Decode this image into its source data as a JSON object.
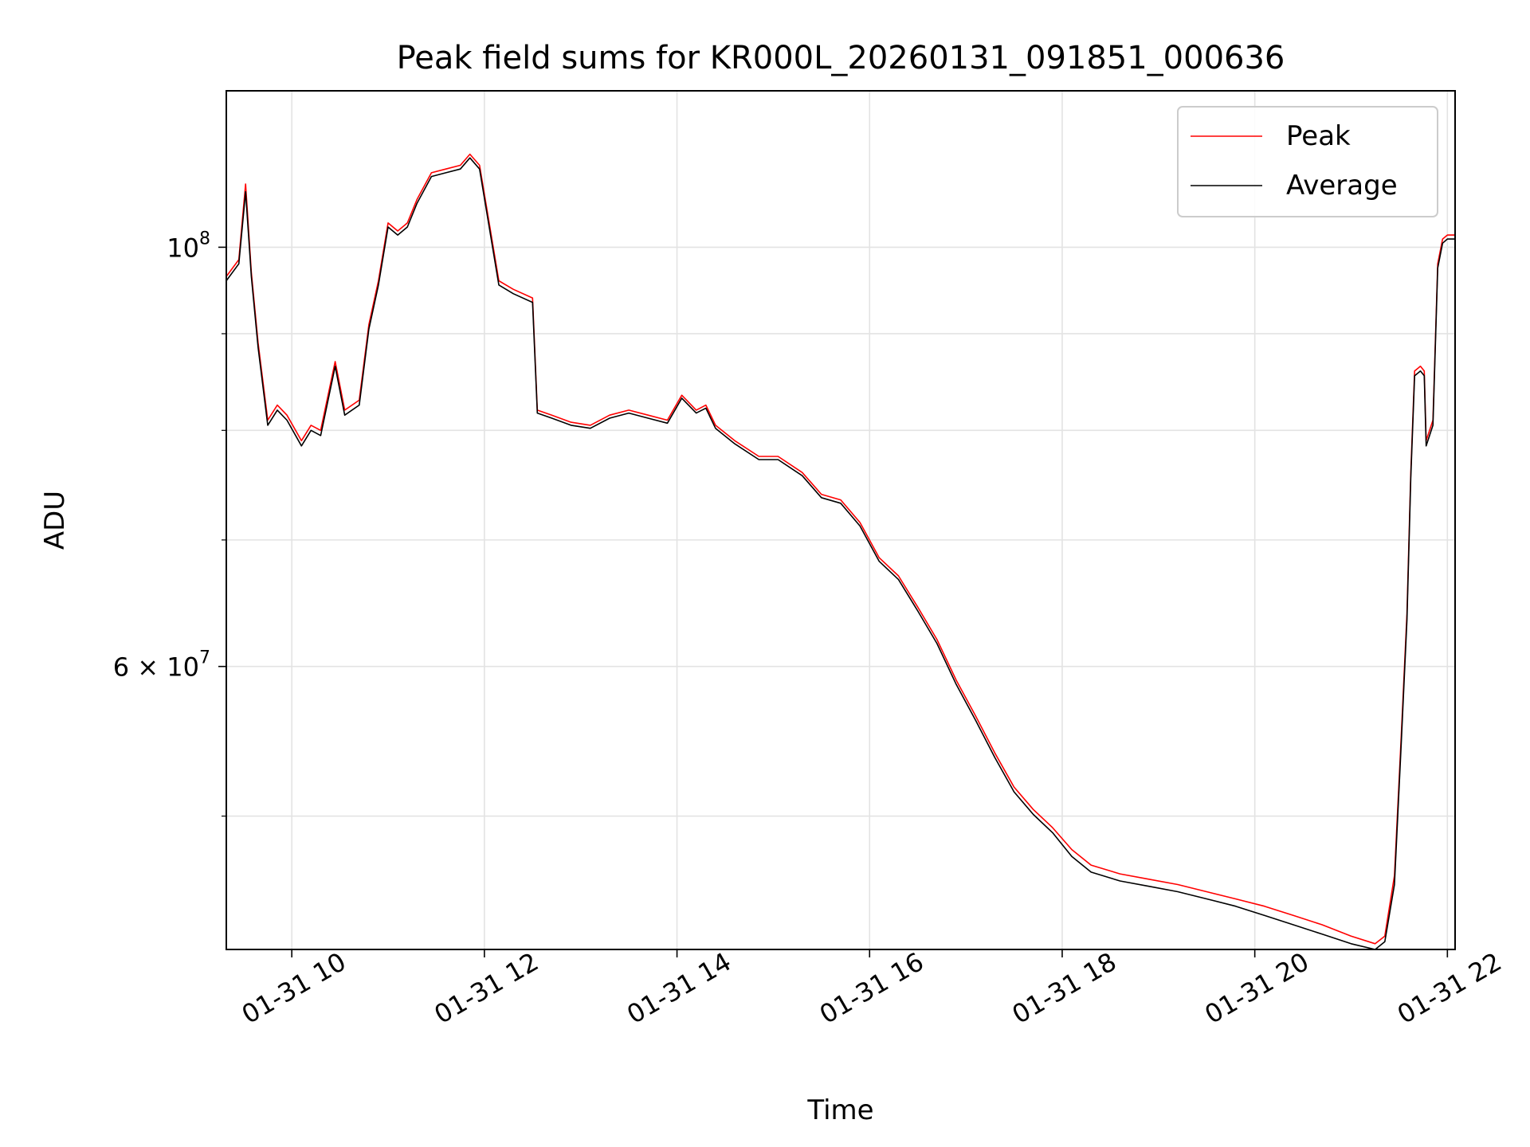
{
  "chart_data": {
    "type": "line",
    "title": "Peak field sums for KR000L_20260131_091851_000636",
    "xlabel": "Time",
    "ylabel": "ADU",
    "yscale": "log",
    "xlim": [
      9.32,
      22.08
    ],
    "ylim": [
      42500000,
      121000000
    ],
    "grid": true,
    "legend_position": "upper-right",
    "x_ticks": [
      {
        "value": 10,
        "label": "01-31 10"
      },
      {
        "value": 12,
        "label": "01-31 12"
      },
      {
        "value": 14,
        "label": "01-31 14"
      },
      {
        "value": 16,
        "label": "01-31 16"
      },
      {
        "value": 18,
        "label": "01-31 18"
      },
      {
        "value": 20,
        "label": "01-31 20"
      },
      {
        "value": 22,
        "label": "01-31 22"
      }
    ],
    "y_major_ticks": [
      {
        "value": 100000000,
        "mantissa": "",
        "base": "10",
        "exp": "8"
      },
      {
        "value": 60000000,
        "mantissa": "6 × ",
        "base": "10",
        "exp": "7"
      }
    ],
    "y_minor_ticks": [
      50000000,
      70000000,
      80000000,
      90000000
    ],
    "series": [
      {
        "name": "Peak",
        "color": "#ff0000",
        "points": [
          [
            9.32,
            96500000
          ],
          [
            9.45,
            98500000
          ],
          [
            9.52,
            108000000
          ],
          [
            9.58,
            97000000
          ],
          [
            9.65,
            89000000
          ],
          [
            9.75,
            81000000
          ],
          [
            9.85,
            82500000
          ],
          [
            9.95,
            81500000
          ],
          [
            10.1,
            79000000
          ],
          [
            10.2,
            80500000
          ],
          [
            10.3,
            80000000
          ],
          [
            10.45,
            87000000
          ],
          [
            10.55,
            82000000
          ],
          [
            10.7,
            83000000
          ],
          [
            10.8,
            91000000
          ],
          [
            10.9,
            96000000
          ],
          [
            11.0,
            103000000
          ],
          [
            11.1,
            102000000
          ],
          [
            11.2,
            103000000
          ],
          [
            11.3,
            106000000
          ],
          [
            11.45,
            109500000
          ],
          [
            11.6,
            110000000
          ],
          [
            11.75,
            110500000
          ],
          [
            11.85,
            112000000
          ],
          [
            11.95,
            110500000
          ],
          [
            12.05,
            103000000
          ],
          [
            12.15,
            96000000
          ],
          [
            12.3,
            95000000
          ],
          [
            12.5,
            94000000
          ],
          [
            12.55,
            82000000
          ],
          [
            12.7,
            81500000
          ],
          [
            12.9,
            80800000
          ],
          [
            13.1,
            80500000
          ],
          [
            13.3,
            81500000
          ],
          [
            13.5,
            82000000
          ],
          [
            13.7,
            81500000
          ],
          [
            13.9,
            81000000
          ],
          [
            14.05,
            83500000
          ],
          [
            14.2,
            82000000
          ],
          [
            14.3,
            82500000
          ],
          [
            14.4,
            80500000
          ],
          [
            14.6,
            79000000
          ],
          [
            14.85,
            77500000
          ],
          [
            15.05,
            77500000
          ],
          [
            15.3,
            76000000
          ],
          [
            15.5,
            74000000
          ],
          [
            15.7,
            73500000
          ],
          [
            15.9,
            71500000
          ],
          [
            16.1,
            68500000
          ],
          [
            16.3,
            67000000
          ],
          [
            16.5,
            64500000
          ],
          [
            16.7,
            62000000
          ],
          [
            16.9,
            59000000
          ],
          [
            17.1,
            56500000
          ],
          [
            17.3,
            54000000
          ],
          [
            17.5,
            51800000
          ],
          [
            17.7,
            50400000
          ],
          [
            17.9,
            49300000
          ],
          [
            18.1,
            48000000
          ],
          [
            18.3,
            47100000
          ],
          [
            18.6,
            46600000
          ],
          [
            18.9,
            46300000
          ],
          [
            19.2,
            46000000
          ],
          [
            19.5,
            45600000
          ],
          [
            19.8,
            45200000
          ],
          [
            20.1,
            44800000
          ],
          [
            20.4,
            44300000
          ],
          [
            20.7,
            43800000
          ],
          [
            21.0,
            43200000
          ],
          [
            21.25,
            42800000
          ],
          [
            21.35,
            43200000
          ],
          [
            21.45,
            46500000
          ],
          [
            21.52,
            55000000
          ],
          [
            21.58,
            64000000
          ],
          [
            21.62,
            76000000
          ],
          [
            21.66,
            86000000
          ],
          [
            21.72,
            86500000
          ],
          [
            21.76,
            86000000
          ],
          [
            21.78,
            79000000
          ],
          [
            21.85,
            81000000
          ],
          [
            21.9,
            98000000
          ],
          [
            21.95,
            101000000
          ],
          [
            22.0,
            101500000
          ],
          [
            22.08,
            101500000
          ]
        ]
      },
      {
        "name": "Average",
        "color": "#000000",
        "points": [
          [
            9.32,
            96000000
          ],
          [
            9.45,
            98000000
          ],
          [
            9.52,
            107000000
          ],
          [
            9.58,
            96500000
          ],
          [
            9.65,
            88500000
          ],
          [
            9.75,
            80500000
          ],
          [
            9.85,
            82000000
          ],
          [
            9.95,
            81000000
          ],
          [
            10.1,
            78500000
          ],
          [
            10.2,
            80000000
          ],
          [
            10.3,
            79500000
          ],
          [
            10.45,
            86500000
          ],
          [
            10.55,
            81500000
          ],
          [
            10.7,
            82500000
          ],
          [
            10.8,
            90500000
          ],
          [
            10.9,
            95500000
          ],
          [
            11.0,
            102500000
          ],
          [
            11.1,
            101500000
          ],
          [
            11.2,
            102500000
          ],
          [
            11.3,
            105500000
          ],
          [
            11.45,
            109000000
          ],
          [
            11.6,
            109500000
          ],
          [
            11.75,
            110000000
          ],
          [
            11.85,
            111500000
          ],
          [
            11.95,
            110000000
          ],
          [
            12.05,
            102500000
          ],
          [
            12.15,
            95500000
          ],
          [
            12.3,
            94500000
          ],
          [
            12.5,
            93500000
          ],
          [
            12.55,
            81700000
          ],
          [
            12.7,
            81200000
          ],
          [
            12.9,
            80500000
          ],
          [
            13.1,
            80200000
          ],
          [
            13.3,
            81200000
          ],
          [
            13.5,
            81700000
          ],
          [
            13.7,
            81200000
          ],
          [
            13.9,
            80700000
          ],
          [
            14.05,
            83200000
          ],
          [
            14.2,
            81700000
          ],
          [
            14.3,
            82200000
          ],
          [
            14.4,
            80200000
          ],
          [
            14.6,
            78700000
          ],
          [
            14.85,
            77200000
          ],
          [
            15.05,
            77200000
          ],
          [
            15.3,
            75700000
          ],
          [
            15.5,
            73700000
          ],
          [
            15.7,
            73200000
          ],
          [
            15.9,
            71200000
          ],
          [
            16.1,
            68200000
          ],
          [
            16.3,
            66700000
          ],
          [
            16.5,
            64200000
          ],
          [
            16.7,
            61700000
          ],
          [
            16.9,
            58700000
          ],
          [
            17.1,
            56200000
          ],
          [
            17.3,
            53700000
          ],
          [
            17.5,
            51500000
          ],
          [
            17.7,
            50100000
          ],
          [
            17.9,
            49000000
          ],
          [
            18.1,
            47600000
          ],
          [
            18.3,
            46700000
          ],
          [
            18.6,
            46200000
          ],
          [
            18.9,
            45900000
          ],
          [
            19.2,
            45600000
          ],
          [
            19.5,
            45200000
          ],
          [
            19.8,
            44800000
          ],
          [
            20.1,
            44300000
          ],
          [
            20.4,
            43800000
          ],
          [
            20.7,
            43300000
          ],
          [
            21.0,
            42800000
          ],
          [
            21.25,
            42500000
          ],
          [
            21.35,
            42900000
          ],
          [
            21.45,
            46000000
          ],
          [
            21.52,
            54500000
          ],
          [
            21.58,
            63500000
          ],
          [
            21.62,
            75500000
          ],
          [
            21.66,
            85500000
          ],
          [
            21.72,
            86000000
          ],
          [
            21.76,
            85500000
          ],
          [
            21.78,
            78500000
          ],
          [
            21.85,
            80500000
          ],
          [
            21.9,
            97500000
          ],
          [
            21.95,
            100500000
          ],
          [
            22.0,
            101000000
          ],
          [
            22.08,
            101000000
          ]
        ]
      }
    ]
  }
}
